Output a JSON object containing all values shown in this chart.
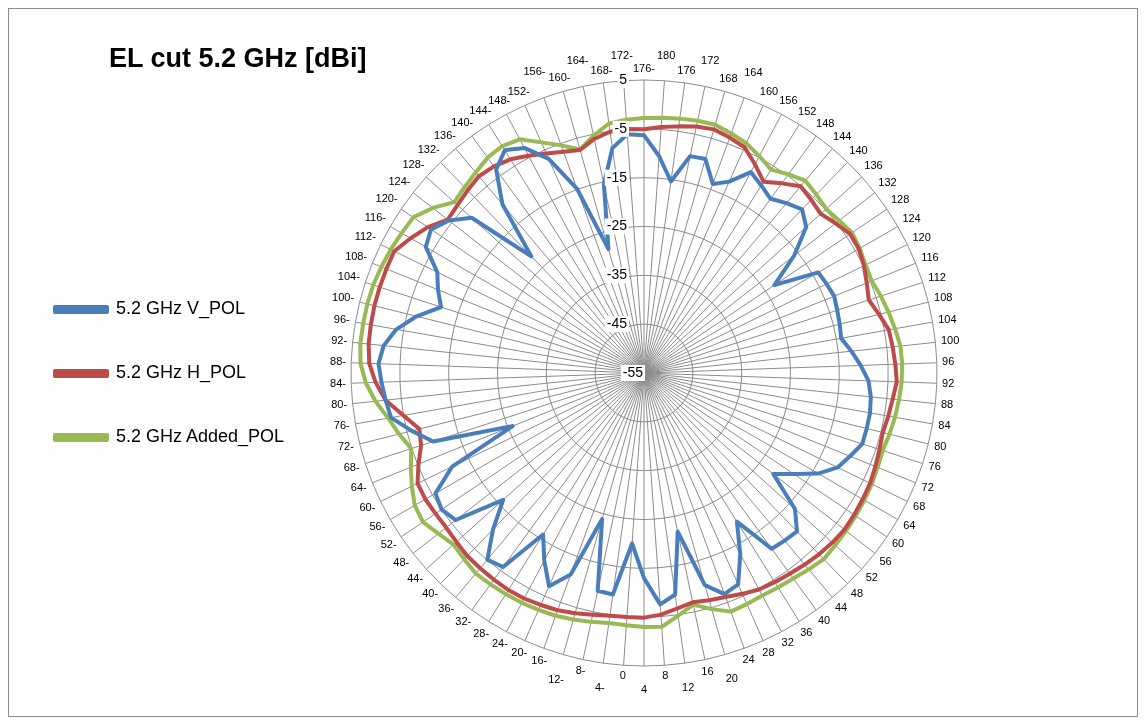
{
  "chart_data": {
    "type": "radar",
    "title": "EL cut 5.2 GHz [dBi]",
    "categories": [
      "176-",
      "180",
      "176",
      "172",
      "168",
      "164",
      "160",
      "156",
      "152",
      "148",
      "144",
      "140",
      "136",
      "132",
      "128",
      "124",
      "120",
      "116",
      "112",
      "108",
      "104",
      "100",
      "96",
      "92",
      "88",
      "84",
      "80",
      "76",
      "72",
      "68",
      "64",
      "60",
      "56",
      "52",
      "48",
      "44",
      "40",
      "36",
      "32",
      "28",
      "24",
      "20",
      "16",
      "12",
      "8",
      "4",
      "0",
      "4-",
      "8-",
      "12-",
      "16-",
      "20-",
      "24-",
      "28-",
      "32-",
      "36-",
      "40-",
      "44-",
      "48-",
      "52-",
      "56-",
      "60-",
      "64-",
      "68-",
      "72-",
      "76-",
      "80-",
      "84-",
      "88-",
      "92-",
      "96-",
      "100-",
      "104-",
      "108-",
      "112-",
      "116-",
      "120-",
      "124-",
      "128-",
      "132-",
      "136-",
      "140-",
      "144-",
      "148-",
      "152-",
      "156-",
      "160-",
      "164-",
      "168-",
      "172-"
    ],
    "series": [
      {
        "name": "5.2 GHz V_POL",
        "color": "#4a7ebb",
        "values": [
          -6.3,
          -10.5,
          -15.4,
          -9.6,
          -9.4,
          -13.8,
          -12.1,
          -8.4,
          -9.7,
          -10.9,
          -9.6,
          -8.4,
          -10.3,
          -16,
          -22.8,
          -13.8,
          -13.4,
          -13,
          -13.4,
          -13.7,
          -14,
          -12.3,
          -10.6,
          -9,
          -8.3,
          -8,
          -8,
          -8,
          -9.5,
          -10.9,
          -13.8,
          -18,
          -21.4,
          -13.4,
          -9.9,
          -10.2,
          -10.5,
          -19.1,
          -13,
          -7.6,
          -6.8,
          -9.8,
          -21.8,
          -9.2,
          -7.5,
          -13,
          -20,
          -9.2,
          -9.4,
          -23.9,
          -11.1,
          -7.2,
          -11.5,
          -16,
          -5.9,
          -5.1,
          -10.5,
          -16.2,
          -6.1,
          -5,
          -5.7,
          -11.3,
          -26,
          -9.6,
          -6,
          -2.4,
          -1.8,
          -1.2,
          -0.6,
          -1.4,
          -3.5,
          -7,
          -11.3,
          -9.5,
          -7.9,
          -3.4,
          -2.4,
          -4.3,
          -7.5,
          -21.8,
          -9.9,
          -3.5,
          -1.2,
          -2.8,
          -7,
          -14.8,
          -28.6,
          -15.5,
          -8.5,
          -6
        ]
      },
      {
        "name": "5.2 GHz H_POL",
        "color": "#be4b48",
        "values": [
          -5.1,
          -4.5,
          -4,
          -3.4,
          -3.1,
          -3.7,
          -4.4,
          -6.6,
          -8.8,
          -7,
          -5.1,
          -5.7,
          -6.3,
          -5.2,
          -4.1,
          -4.2,
          -4.9,
          -5.8,
          -6.6,
          -5.4,
          -4.1,
          -3.8,
          -3.5,
          -3.2,
          -3.8,
          -4.2,
          -4.6,
          -4.3,
          -3.9,
          -3.5,
          -3.3,
          -3.1,
          -2.9,
          -3.1,
          -3.4,
          -3.8,
          -4.2,
          -4.5,
          -4.8,
          -5.5,
          -6.2,
          -6.6,
          -7,
          -6.3,
          -5.4,
          -4.9,
          -4.9,
          -4.8,
          -4.4,
          -3.8,
          -3.3,
          -3,
          -2.7,
          -2.6,
          -2.7,
          -2.8,
          -2.9,
          -3.3,
          -3.6,
          -3.5,
          -3.3,
          -3.4,
          -5.2,
          -7,
          -7.6,
          -5,
          -1.8,
          0,
          1.3,
          1.7,
          1.8,
          1.9,
          1.9,
          1.9,
          1.9,
          0.2,
          -1.6,
          -4,
          -3.6,
          -3,
          -2.4,
          -2.7,
          -3.4,
          -4.6,
          -5.8,
          -6.8,
          -7.5,
          -6,
          -5.1,
          -4.9
        ]
      },
      {
        "name": "5.2 GHz Added_POL",
        "color": "#98b954",
        "values": [
          -2.8,
          -2.6,
          -2.4,
          -2.2,
          -2.1,
          -2.8,
          -3.5,
          -4.7,
          -5.9,
          -4.7,
          -3.6,
          -4.2,
          -4.8,
          -4.3,
          -3.6,
          -4,
          -4.5,
          -4.7,
          -4,
          -3.4,
          -2.8,
          -2.2,
          -2.1,
          -2.2,
          -2.5,
          -2.8,
          -3.2,
          -3.6,
          -3.4,
          -3.1,
          -2.9,
          -2.7,
          -2.5,
          -2.3,
          -2,
          -2.5,
          -3,
          -3.2,
          -3.4,
          -3.2,
          -3,
          -4.7,
          -6.5,
          -4.8,
          -2.9,
          -3,
          -3.2,
          -3.3,
          -2.9,
          -2.5,
          -2.1,
          -1.9,
          -1.7,
          -1.6,
          -1.5,
          -1.4,
          -2,
          -2.5,
          -1.6,
          -0.4,
          -0.8,
          -2.1,
          -3.5,
          -4.9,
          -3.3,
          -1.8,
          0.3,
          2,
          3.1,
          3.4,
          3.4,
          3.4,
          3.3,
          3,
          2.7,
          2.3,
          2,
          -0.1,
          -2.7,
          -2.1,
          -1.4,
          -0.5,
          -0.2,
          -0.8,
          -3.3,
          -5.4,
          -7.4,
          -5.3,
          -3.4,
          -3
        ]
      }
    ],
    "ylim": [
      -55,
      5
    ],
    "yticks": [
      -55,
      -45,
      -35,
      -25,
      -15,
      -5,
      5
    ],
    "grid": true,
    "legend": "left"
  }
}
